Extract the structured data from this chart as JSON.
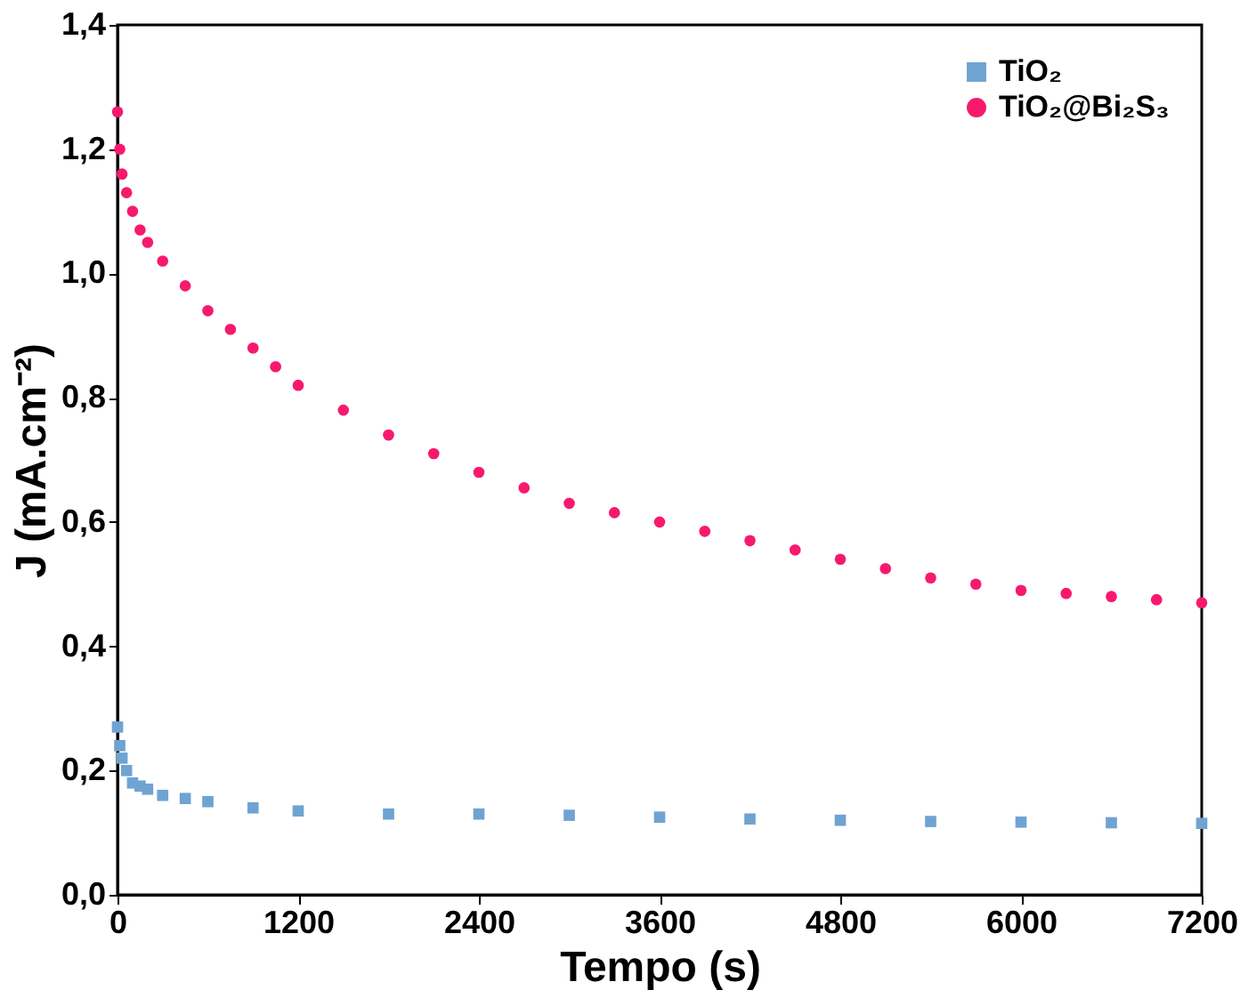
{
  "chart_data": {
    "type": "scatter",
    "xlabel": "Tempo (s)",
    "ylabel": "J (mA.cm⁻²)",
    "xlim": [
      0,
      7200
    ],
    "xticks": [
      0,
      1200,
      2400,
      3600,
      4800,
      6000,
      7200
    ],
    "ylim": [
      0,
      1.4
    ],
    "yticks": [
      {
        "value": 0,
        "label": "0,0"
      },
      {
        "value": 0.2,
        "label": "0,2"
      },
      {
        "value": 0.4,
        "label": "0,4"
      },
      {
        "value": 0.6,
        "label": "0,6"
      },
      {
        "value": 0.8,
        "label": "0,8"
      },
      {
        "value": 1.0,
        "label": "1,0"
      },
      {
        "value": 1.2,
        "label": "1,2"
      },
      {
        "value": 1.4,
        "label": "1,4"
      }
    ],
    "grid": false,
    "legend": "top right",
    "series": [
      {
        "name": "TiO₂",
        "color": "#6fa3d2",
        "marker": "square",
        "x": [
          0,
          15,
          30,
          60,
          100,
          150,
          200,
          300,
          450,
          600,
          900,
          1200,
          1800,
          2400,
          3000,
          3600,
          4200,
          4800,
          5400,
          6000,
          6600,
          7200
        ],
        "values": [
          0.27,
          0.24,
          0.22,
          0.2,
          0.18,
          0.175,
          0.17,
          0.16,
          0.155,
          0.15,
          0.14,
          0.135,
          0.13,
          0.13,
          0.128,
          0.125,
          0.122,
          0.12,
          0.118,
          0.117,
          0.116,
          0.115
        ]
      },
      {
        "name": "TiO₂@Bi₂S₃",
        "color": "#f7196e",
        "marker": "circle",
        "x": [
          0,
          15,
          30,
          60,
          100,
          150,
          200,
          300,
          450,
          600,
          750,
          900,
          1050,
          1200,
          1500,
          1800,
          2100,
          2400,
          2700,
          3000,
          3300,
          3600,
          3900,
          4200,
          4500,
          4800,
          5100,
          5400,
          5700,
          6000,
          6300,
          6600,
          6900,
          7200
        ],
        "values": [
          1.26,
          1.2,
          1.16,
          1.13,
          1.1,
          1.07,
          1.05,
          1.02,
          0.98,
          0.94,
          0.91,
          0.88,
          0.85,
          0.82,
          0.78,
          0.74,
          0.71,
          0.68,
          0.655,
          0.63,
          0.615,
          0.6,
          0.585,
          0.57,
          0.555,
          0.54,
          0.525,
          0.51,
          0.5,
          0.49,
          0.485,
          0.48,
          0.475,
          0.47
        ]
      }
    ]
  }
}
